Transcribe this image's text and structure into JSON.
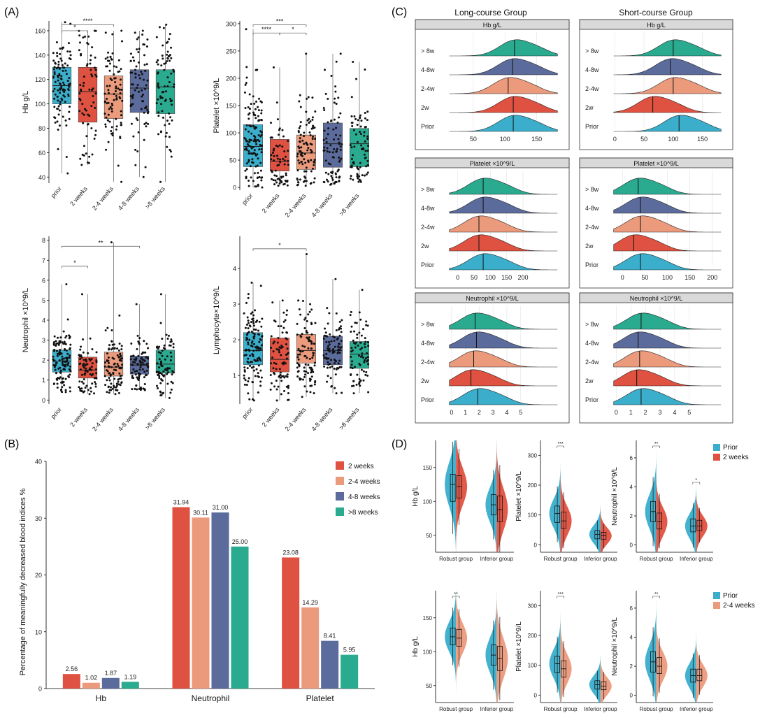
{
  "panel_labels": {
    "A": "(A)",
    "B": "(B)",
    "C": "(C)",
    "D": "(D)"
  },
  "colors": {
    "prior": "#3aaecb",
    "w2": "#df5140",
    "w24": "#ec9a7c",
    "w48": "#5b6b9b",
    "w8": "#2aab8f",
    "strip": "#d9d9d9"
  },
  "chart_data": [
    {
      "id": "A1",
      "type": "box",
      "categories": [
        "prior",
        "2 weeks",
        "2-4 weeks",
        "4-8 weeks",
        ">8 weeks"
      ],
      "ylabel": "Hb g/L",
      "ylim": [
        35,
        168
      ],
      "yticks": [
        40,
        60,
        80,
        100,
        120,
        140,
        160
      ],
      "boxes": [
        {
          "min": 43,
          "q1": 100,
          "median": 115,
          "q3": 130,
          "max": 167,
          "n": 110
        },
        {
          "min": 50,
          "q1": 85,
          "median": 110,
          "q3": 130,
          "max": 160,
          "n": 70
        },
        {
          "min": 36,
          "q1": 88,
          "median": 108,
          "q3": 123,
          "max": 160,
          "n": 90
        },
        {
          "min": 40,
          "q1": 93,
          "median": 113,
          "q3": 128,
          "max": 160,
          "n": 80
        },
        {
          "min": 36,
          "q1": 92,
          "median": 114,
          "q3": 128,
          "max": 165,
          "n": 80
        }
      ],
      "significance": [
        {
          "from": 0,
          "to": 2,
          "label": "****",
          "y": 165
        },
        {
          "from": 0,
          "to": 1,
          "label": "*",
          "y": 160
        }
      ]
    },
    {
      "id": "A2",
      "type": "box",
      "categories": [
        "prior",
        "2 weeks",
        "2-4 weeks",
        "4-8 weeks",
        ">8 weeks"
      ],
      "ylabel": "Platelet ×10^9/L",
      "ylim": [
        -5,
        305
      ],
      "yticks": [
        0,
        50,
        100,
        150,
        200,
        250,
        300
      ],
      "boxes": [
        {
          "min": 0,
          "q1": 38,
          "median": 75,
          "q3": 115,
          "max": 290,
          "n": 130
        },
        {
          "min": 3,
          "q1": 30,
          "median": 48,
          "q3": 88,
          "max": 220,
          "n": 70
        },
        {
          "min": 3,
          "q1": 33,
          "median": 63,
          "q3": 96,
          "max": 245,
          "n": 100
        },
        {
          "min": 5,
          "q1": 37,
          "median": 80,
          "q3": 118,
          "max": 245,
          "n": 90
        },
        {
          "min": 10,
          "q1": 38,
          "median": 80,
          "q3": 108,
          "max": 230,
          "n": 80
        }
      ],
      "significance": [
        {
          "from": 0,
          "to": 2,
          "label": "***",
          "y": 298
        },
        {
          "from": 0,
          "to": 1,
          "label": "****",
          "y": 283
        },
        {
          "from": 1,
          "to": 2,
          "label": "*",
          "y": 283
        }
      ]
    },
    {
      "id": "A3",
      "type": "box",
      "categories": [
        "prior",
        "2 weeks",
        "2-4 weeks",
        "4-8 weeks",
        ">8 weeks"
      ],
      "ylabel": "Neutrophil ×10^9/L",
      "ylim": [
        -0.2,
        8.2
      ],
      "yticks": [
        0,
        1,
        2,
        3,
        4,
        5,
        6,
        7,
        8
      ],
      "boxes": [
        {
          "min": 0.4,
          "q1": 1.4,
          "median": 1.95,
          "q3": 2.5,
          "max": 5.8,
          "n": 130
        },
        {
          "min": 0.3,
          "q1": 1.1,
          "median": 1.5,
          "q3": 2.15,
          "max": 5.3,
          "n": 80
        },
        {
          "min": 0.3,
          "q1": 1.2,
          "median": 1.65,
          "q3": 2.4,
          "max": 7.9,
          "n": 100
        },
        {
          "min": 0.5,
          "q1": 1.3,
          "median": 1.75,
          "q3": 2.2,
          "max": 4.8,
          "n": 90
        },
        {
          "min": 0.1,
          "q1": 1.35,
          "median": 1.8,
          "q3": 2.5,
          "max": 5.3,
          "n": 80
        }
      ],
      "significance": [
        {
          "from": 0,
          "to": 3,
          "label": "**",
          "y": 7.7
        },
        {
          "from": 0,
          "to": 1,
          "label": "*",
          "y": 6.7
        }
      ]
    },
    {
      "id": "A4",
      "type": "box",
      "categories": [
        "prior",
        "2 weeks",
        "2-4 weeks",
        "4-8 weeks",
        ">8 weeks"
      ],
      "ylabel": "Lymphocyte×10^9/L",
      "ylim": [
        0.2,
        4.9
      ],
      "yticks": [
        1,
        2,
        3,
        4
      ],
      "boxes": [
        {
          "min": 0.3,
          "q1": 1.3,
          "median": 1.7,
          "q3": 2.2,
          "max": 3.6,
          "n": 130
        },
        {
          "min": 0.3,
          "q1": 1.1,
          "median": 1.45,
          "q3": 2.05,
          "max": 3.1,
          "n": 80
        },
        {
          "min": 0.4,
          "q1": 1.35,
          "median": 1.7,
          "q3": 2.15,
          "max": 4.4,
          "n": 100
        },
        {
          "min": 0.5,
          "q1": 1.3,
          "median": 1.7,
          "q3": 2.1,
          "max": 3.7,
          "n": 90
        },
        {
          "min": 0.5,
          "q1": 1.2,
          "median": 1.6,
          "q3": 1.95,
          "max": 3.4,
          "n": 80
        }
      ],
      "significance": [
        {
          "from": 0,
          "to": 2,
          "label": "*",
          "y": 4.55
        }
      ]
    },
    {
      "id": "B",
      "type": "bar",
      "categories": [
        "Hb",
        "Neutrophil",
        "Platelet"
      ],
      "series": [
        {
          "name": "2 weeks",
          "color": "#df5140",
          "values": [
            2.56,
            31.94,
            23.08
          ]
        },
        {
          "name": "2-4 weeks",
          "color": "#ec9a7c",
          "values": [
            1.02,
            30.11,
            14.29
          ]
        },
        {
          "name": "4-8 weeks",
          "color": "#5b6b9b",
          "values": [
            1.87,
            31.0,
            8.41
          ]
        },
        {
          "name": ">8 weeks",
          "color": "#2aab8f",
          "values": [
            1.19,
            25.0,
            5.95
          ]
        }
      ],
      "value_labels": [
        [
          "2.56",
          "1.02",
          "1.87",
          "1.19"
        ],
        [
          "31.94",
          "30.11",
          "31.00",
          "25.00"
        ],
        [
          "23.08",
          "14.29",
          "8.41",
          "5.95"
        ]
      ],
      "ylabel": "Percentage of meaningfully decreased blood indices %",
      "ylim": [
        0,
        40
      ],
      "yticks": [
        0,
        10,
        20,
        30,
        40
      ],
      "legend": "top-right"
    },
    {
      "id": "C",
      "type": "ridgeline",
      "column_titles": [
        "Long-course Group",
        "Short-course Group"
      ],
      "rows": [
        "> 8w",
        "4-8w",
        "2-4w",
        "2w",
        "Prior"
      ],
      "panels": [
        {
          "strip": "Hb g/L",
          "group": "long",
          "xlim": [
            5,
            190
          ],
          "xticks": [
            50,
            100,
            150
          ],
          "tick_labels": [
            "50",
            "100",
            "150"
          ],
          "medians": [
            115,
            112,
            105,
            113,
            113
          ]
        },
        {
          "strip": "Hb g/L",
          "group": "short",
          "xlim": [
            -10,
            190
          ],
          "xticks": [
            0,
            50,
            100,
            150
          ],
          "tick_labels": [
            "0",
            "50",
            "100",
            "150"
          ],
          "medians": [
            100,
            95,
            100,
            65,
            110
          ]
        },
        {
          "strip": "Platelet ×10^9/L",
          "group": "long",
          "xlim": [
            -40,
            320
          ],
          "xticks": [
            0,
            50,
            100,
            150,
            200
          ],
          "tick_labels": [
            "0",
            "50",
            "100",
            "150",
            "200"
          ],
          "medians": [
            78,
            78,
            65,
            65,
            78
          ]
        },
        {
          "strip": "Platelet ×10^9/L",
          "group": "short",
          "xlim": [
            -30,
            230
          ],
          "xticks": [
            0,
            50,
            100,
            150,
            200
          ],
          "tick_labels": [
            "0",
            "50",
            "100",
            "150",
            "200"
          ],
          "medians": [
            35,
            40,
            40,
            25,
            40
          ]
        },
        {
          "strip": "Neutrophil ×10^9/L",
          "group": "long",
          "xlim": [
            -0.5,
            8
          ],
          "xticks": [
            0,
            1,
            2,
            3,
            4,
            5
          ],
          "tick_labels": [
            "0",
            "1",
            "2",
            "3",
            "4",
            "5"
          ],
          "medians": [
            1.7,
            1.8,
            1.6,
            1.4,
            1.9
          ]
        },
        {
          "strip": "Neutrophil ×10^9/L",
          "group": "short",
          "xlim": [
            -0.5,
            7.5
          ],
          "xticks": [
            0,
            1,
            2,
            3,
            4,
            5
          ],
          "tick_labels": [
            "0",
            "1",
            "2",
            "3",
            "4",
            "5"
          ],
          "medians": [
            1.7,
            1.5,
            1.6,
            1.4,
            1.7
          ]
        }
      ]
    },
    {
      "id": "D",
      "type": "split-violin",
      "groups": [
        "Robust group",
        "Inferior group"
      ],
      "legends": [
        {
          "title": "",
          "items": [
            {
              "name": "Prior",
              "color": "#3aaecb"
            },
            {
              "name": "2 weeks",
              "color": "#df5140"
            }
          ]
        },
        {
          "title": "",
          "items": [
            {
              "name": "Prior",
              "color": "#3aaecb"
            },
            {
              "name": "2-4 weeks",
              "color": "#ec9a7c"
            }
          ]
        }
      ],
      "panels": [
        {
          "row": 0,
          "ylabel": "Hb g/L",
          "ylim": [
            25,
            190
          ],
          "yticks": [
            50,
            100,
            150
          ],
          "left": [
            [
              100,
              125,
              140
            ],
            [
              80,
              95,
              110
            ]
          ],
          "right": [
            [
              105,
              122,
              138
            ],
            [
              70,
              88,
              108
            ]
          ],
          "sig": [
            {
              "group": 0,
              "label": ""
            },
            {
              "group": 1,
              "label": ""
            }
          ]
        },
        {
          "row": 0,
          "ylabel": "Platelet ×10^9/L",
          "ylim": [
            -25,
            350
          ],
          "yticks": [
            0,
            100,
            200,
            300
          ],
          "left": [
            [
              75,
              105,
              130
            ],
            [
              20,
              35,
              48
            ]
          ],
          "right": [
            [
              55,
              80,
              110
            ],
            [
              18,
              30,
              42
            ]
          ],
          "sig": [
            {
              "group": 0,
              "label": "***"
            }
          ]
        },
        {
          "row": 0,
          "ylabel": "Neutrophil ×10^9/L",
          "ylim": [
            -0.5,
            7.2
          ],
          "yticks": [
            0,
            2,
            4,
            6
          ],
          "left": [
            [
              1.6,
              2.3,
              3.0
            ],
            [
              0.9,
              1.3,
              1.8
            ]
          ],
          "right": [
            [
              1.1,
              1.6,
              2.2
            ],
            [
              1.0,
              1.3,
              1.7
            ]
          ],
          "sig": [
            {
              "group": 0,
              "label": "**"
            },
            {
              "group": 1,
              "label": "*"
            }
          ]
        },
        {
          "row": 1,
          "ylabel": "Hb g/L",
          "ylim": [
            25,
            190
          ],
          "yticks": [
            50,
            100,
            150
          ],
          "left": [
            [
              110,
              122,
              135
            ],
            [
              80,
              95,
              110
            ]
          ],
          "right": [
            [
              108,
              120,
              133
            ],
            [
              72,
              90,
              108
            ]
          ],
          "sig": [
            {
              "group": 0,
              "label": "**"
            }
          ]
        },
        {
          "row": 1,
          "ylabel": "Platelet ×10^9/L",
          "ylim": [
            -25,
            350
          ],
          "yticks": [
            0,
            100,
            200,
            300
          ],
          "left": [
            [
              75,
              105,
              130
            ],
            [
              20,
              35,
              48
            ]
          ],
          "right": [
            [
              60,
              88,
              115
            ],
            [
              18,
              30,
              45
            ]
          ],
          "sig": [
            {
              "group": 0,
              "label": "***"
            }
          ]
        },
        {
          "row": 1,
          "ylabel": "Neutrophil ×10^9/L",
          "ylim": [
            -0.5,
            7.2
          ],
          "yticks": [
            0,
            2,
            4,
            6
          ],
          "left": [
            [
              1.6,
              2.3,
              3.0
            ],
            [
              0.9,
              1.35,
              1.8
            ]
          ],
          "right": [
            [
              1.5,
              2.0,
              2.6
            ],
            [
              1.0,
              1.35,
              1.8
            ]
          ],
          "sig": [
            {
              "group": 0,
              "label": "**"
            }
          ]
        }
      ]
    }
  ]
}
